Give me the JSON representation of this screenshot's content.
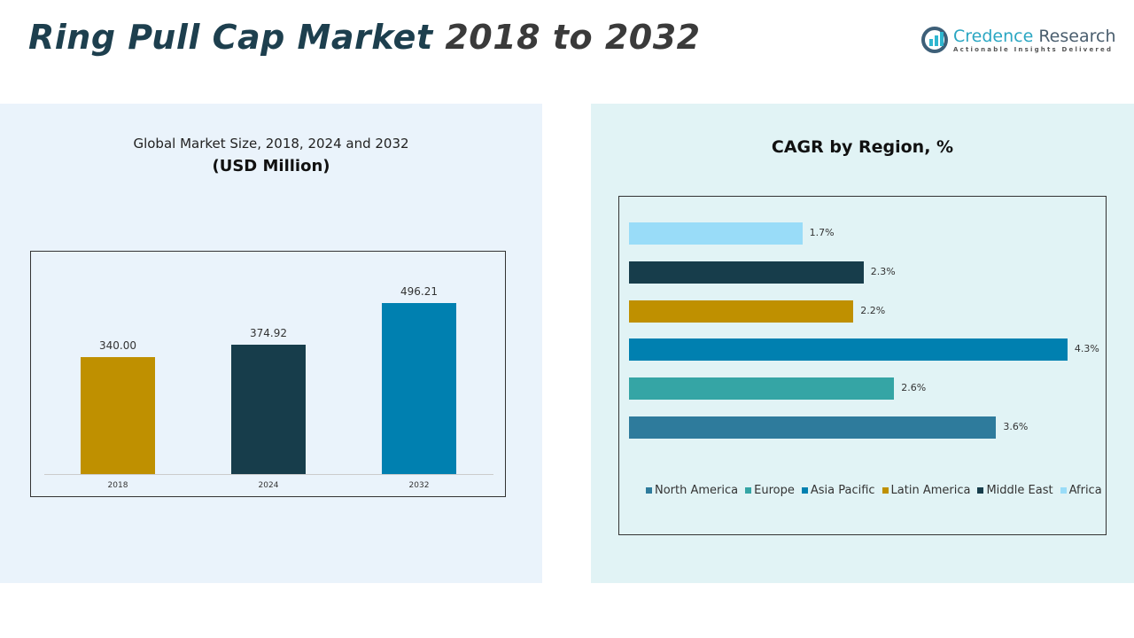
{
  "header": {
    "title_main": "Ring Pull Cap Market",
    "title_years": "2018 to 2032"
  },
  "logo": {
    "name_a": "Credence",
    "name_b": "Research",
    "tagline": "Actionable Insights Delivered"
  },
  "chart_data": [
    {
      "type": "bar",
      "title": "Global Market Size, 2018, 2024 and 2032",
      "subtitle": "(USD Million)",
      "categories": [
        "2018",
        "2024",
        "2032"
      ],
      "values": [
        340.0,
        374.92,
        496.21
      ],
      "value_labels": [
        "340.00",
        "374.92",
        "496.21"
      ],
      "colors": [
        "#bf9000",
        "#173d4b",
        "#0080b0"
      ],
      "grid": false
    },
    {
      "type": "bar",
      "orientation": "horizontal",
      "title": "CAGR by Region, %",
      "categories": [
        "Africa",
        "Middle East",
        "Latin America",
        "Asia Pacific",
        "Europe",
        "North America"
      ],
      "values": [
        1.7,
        2.3,
        2.2,
        4.3,
        2.6,
        3.6
      ],
      "value_labels": [
        "1.7%",
        "2.3%",
        "2.2%",
        "4.3%",
        "2.6%",
        "3.6%"
      ],
      "colors": [
        "#99dcf8",
        "#173d4b",
        "#bf9000",
        "#0080b0",
        "#35a5a5",
        "#2e7b9c"
      ],
      "legend": [
        "North America",
        "Europe",
        "Asia Pacific",
        "Latin America",
        "Middle East",
        "Africa"
      ],
      "legend_colors": [
        "#2e7b9c",
        "#35a5a5",
        "#0080b0",
        "#bf9000",
        "#173d4b",
        "#99dcf8"
      ],
      "legend_position": "bottom",
      "grid": false
    }
  ]
}
